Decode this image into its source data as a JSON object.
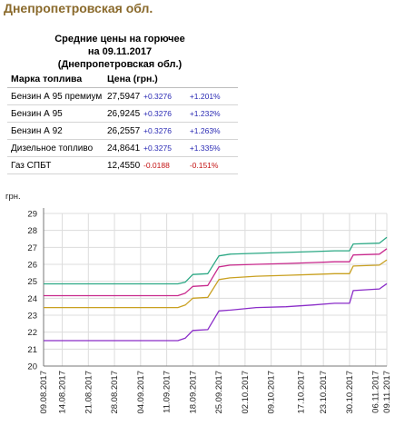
{
  "header": {
    "region_title": "Днепропетровская обл."
  },
  "subtitle": {
    "line1": "Средние цены на горючее",
    "line2": "на 09.11.2017",
    "line3": "(Днепропетровская обл.)"
  },
  "table": {
    "headers": [
      "Марка топлива",
      "Цена (грн.)"
    ],
    "rows": [
      {
        "name": "Бензин А 95 премиум",
        "price": "27,5947",
        "change": "+0.3276",
        "pct": "+1.201%",
        "dir": "up"
      },
      {
        "name": "Бензин А 95",
        "price": "26,9245",
        "change": "+0.3276",
        "pct": "+1.232%",
        "dir": "up"
      },
      {
        "name": "Бензин А 92",
        "price": "26,2557",
        "change": "+0.3276",
        "pct": "+1.263%",
        "dir": "up"
      },
      {
        "name": "Дизельное топливо",
        "price": "24,8641",
        "change": "+0.3275",
        "pct": "+1.335%",
        "dir": "up"
      },
      {
        "name": "Газ СПБТ",
        "price": "12,4550",
        "change": "-0.0188",
        "pct": "-0.151%",
        "dir": "down"
      }
    ]
  },
  "chart_data": {
    "type": "line",
    "ylabel": "грн.",
    "ylim": [
      20,
      29
    ],
    "yticks": [
      20,
      21,
      22,
      23,
      24,
      25,
      26,
      27,
      28,
      29
    ],
    "xticks": [
      "09.08.2017",
      "14.08.2017",
      "21.08.2017",
      "28.08.2017",
      "04.09.2017",
      "11.09.2017",
      "18.09.2017",
      "25.09.2017",
      "02.10.2017",
      "09.10.2017",
      "17.10.2017",
      "23.10.2017",
      "30.10.2017",
      "06.11.2017",
      "09.11.2017"
    ],
    "xlim": [
      "2017-08-09",
      "2017-11-09"
    ],
    "grid": true,
    "series": [
      {
        "color": "#2ba884",
        "points": [
          [
            "2017-08-09",
            24.85
          ],
          [
            "2017-09-14",
            24.85
          ],
          [
            "2017-09-16",
            24.95
          ],
          [
            "2017-09-18",
            25.4
          ],
          [
            "2017-09-22",
            25.45
          ],
          [
            "2017-09-25",
            26.5
          ],
          [
            "2017-09-28",
            26.6
          ],
          [
            "2017-10-05",
            26.65
          ],
          [
            "2017-10-13",
            26.7
          ],
          [
            "2017-10-20",
            26.75
          ],
          [
            "2017-10-26",
            26.8
          ],
          [
            "2017-10-30",
            26.8
          ],
          [
            "2017-10-31",
            27.2
          ],
          [
            "2017-11-07",
            27.25
          ],
          [
            "2017-11-09",
            27.59
          ]
        ]
      },
      {
        "color": "#c8288c",
        "points": [
          [
            "2017-08-09",
            24.15
          ],
          [
            "2017-09-14",
            24.15
          ],
          [
            "2017-09-16",
            24.3
          ],
          [
            "2017-09-18",
            24.7
          ],
          [
            "2017-09-22",
            24.75
          ],
          [
            "2017-09-25",
            25.85
          ],
          [
            "2017-09-28",
            25.95
          ],
          [
            "2017-10-05",
            26.0
          ],
          [
            "2017-10-13",
            26.05
          ],
          [
            "2017-10-20",
            26.1
          ],
          [
            "2017-10-26",
            26.15
          ],
          [
            "2017-10-30",
            26.15
          ],
          [
            "2017-10-31",
            26.55
          ],
          [
            "2017-11-07",
            26.6
          ],
          [
            "2017-11-09",
            26.92
          ]
        ]
      },
      {
        "color": "#c9a020",
        "points": [
          [
            "2017-08-09",
            23.45
          ],
          [
            "2017-09-14",
            23.45
          ],
          [
            "2017-09-16",
            23.6
          ],
          [
            "2017-09-18",
            24.0
          ],
          [
            "2017-09-22",
            24.05
          ],
          [
            "2017-09-25",
            25.1
          ],
          [
            "2017-09-28",
            25.2
          ],
          [
            "2017-10-05",
            25.3
          ],
          [
            "2017-10-13",
            25.35
          ],
          [
            "2017-10-20",
            25.4
          ],
          [
            "2017-10-26",
            25.45
          ],
          [
            "2017-10-30",
            25.45
          ],
          [
            "2017-10-31",
            25.9
          ],
          [
            "2017-11-07",
            25.95
          ],
          [
            "2017-11-09",
            26.26
          ]
        ]
      },
      {
        "color": "#8a2cc8",
        "points": [
          [
            "2017-08-09",
            21.5
          ],
          [
            "2017-09-14",
            21.5
          ],
          [
            "2017-09-16",
            21.65
          ],
          [
            "2017-09-18",
            22.1
          ],
          [
            "2017-09-22",
            22.15
          ],
          [
            "2017-09-25",
            23.25
          ],
          [
            "2017-09-28",
            23.3
          ],
          [
            "2017-10-05",
            23.45
          ],
          [
            "2017-10-13",
            23.5
          ],
          [
            "2017-10-20",
            23.6
          ],
          [
            "2017-10-26",
            23.7
          ],
          [
            "2017-10-30",
            23.7
          ],
          [
            "2017-10-31",
            24.45
          ],
          [
            "2017-11-07",
            24.55
          ],
          [
            "2017-11-09",
            24.86
          ]
        ]
      }
    ]
  }
}
